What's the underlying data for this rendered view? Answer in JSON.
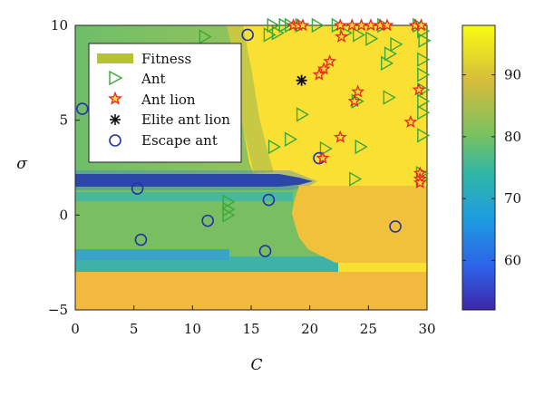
{
  "chart_data": {
    "type": "scatter",
    "title": "",
    "xlabel": "C",
    "ylabel": "σ",
    "xlim": [
      0,
      30
    ],
    "ylim": [
      -5,
      10
    ],
    "xticks": [
      0,
      5,
      10,
      15,
      20,
      25,
      30
    ],
    "yticks": [
      -5,
      0,
      5,
      10
    ],
    "colorbar": {
      "range": [
        52,
        98
      ],
      "ticks": [
        60,
        70,
        80,
        90
      ],
      "colormap": [
        "#3e26a8",
        "#2d62e8",
        "#1e9ce0",
        "#30b7a6",
        "#7bc15f",
        "#d4bb3c",
        "#f9fb14"
      ]
    },
    "background_regions": {
      "description_colors": {
        "dark_blue": "#2a2c8c",
        "blue": "#3a9ee0",
        "teal": "#38b5a0",
        "green": "#6ebd6a",
        "lightgreen": "#8ec35c",
        "orange": "#f0ba3c",
        "yellow": "#fce634"
      }
    },
    "legend": {
      "position": "top-left",
      "entries": [
        {
          "label": "Fitness",
          "marker": "patch",
          "color": "#b5c32c"
        },
        {
          "label": "Ant",
          "marker": "triangle",
          "color": "#3aa83a"
        },
        {
          "label": "Ant lion",
          "marker": "star",
          "color": "#e8261c"
        },
        {
          "label": "Elite ant lion",
          "marker": "asterisk",
          "color": "#111111"
        },
        {
          "label": "Escape ant",
          "marker": "circle",
          "color": "#2433a8"
        }
      ]
    },
    "series": [
      {
        "name": "Ant",
        "points": [
          [
            16.8,
            10
          ],
          [
            17.8,
            10
          ],
          [
            18.3,
            10
          ],
          [
            19.2,
            10
          ],
          [
            20.6,
            10
          ],
          [
            22.3,
            10
          ],
          [
            26.2,
            10
          ],
          [
            29.2,
            10
          ],
          [
            29.6,
            9.7
          ],
          [
            29.7,
            9.2
          ],
          [
            16.5,
            9.5
          ],
          [
            17.2,
            9.6
          ],
          [
            23.0,
            9.6
          ],
          [
            24.1,
            9.5
          ],
          [
            25.2,
            9.3
          ],
          [
            27.3,
            9.0
          ],
          [
            26.8,
            8.5
          ],
          [
            26.5,
            8.0
          ],
          [
            11.0,
            9.4
          ],
          [
            29.6,
            8.2
          ],
          [
            29.6,
            7.4
          ],
          [
            29.6,
            6.6
          ],
          [
            29.6,
            6.0
          ],
          [
            29.6,
            5.4
          ],
          [
            26.7,
            6.2
          ],
          [
            24.0,
            6.0
          ],
          [
            29.6,
            4.2
          ],
          [
            19.3,
            5.3
          ],
          [
            18.3,
            4.0
          ],
          [
            24.3,
            3.6
          ],
          [
            16.9,
            3.6
          ],
          [
            21.3,
            3.5
          ],
          [
            23.8,
            1.9
          ],
          [
            29.5,
            2.2
          ],
          [
            29.5,
            1.9
          ],
          [
            13.0,
            0.7
          ],
          [
            13.0,
            0.3
          ],
          [
            13.0,
            0.0
          ]
        ]
      },
      {
        "name": "Ant lion",
        "points": [
          [
            18.6,
            10
          ],
          [
            19.0,
            10
          ],
          [
            19.4,
            10
          ],
          [
            22.6,
            10
          ],
          [
            23.6,
            10
          ],
          [
            24.4,
            10
          ],
          [
            25.2,
            10
          ],
          [
            26.0,
            10
          ],
          [
            26.6,
            10
          ],
          [
            29.0,
            10
          ],
          [
            29.5,
            10
          ],
          [
            22.7,
            9.4
          ],
          [
            21.7,
            8.1
          ],
          [
            21.2,
            7.7
          ],
          [
            20.8,
            7.4
          ],
          [
            24.1,
            6.5
          ],
          [
            23.8,
            6.0
          ],
          [
            29.3,
            6.6
          ],
          [
            28.6,
            4.9
          ],
          [
            22.6,
            4.1
          ],
          [
            21.1,
            3.0
          ],
          [
            29.4,
            2.2
          ],
          [
            29.4,
            1.9
          ],
          [
            29.4,
            1.7
          ]
        ]
      },
      {
        "name": "Elite ant lion",
        "points": [
          [
            19.3,
            7.1
          ]
        ]
      },
      {
        "name": "Escape ant",
        "points": [
          [
            0.6,
            5.6
          ],
          [
            5.3,
            1.4
          ],
          [
            5.6,
            -1.3
          ],
          [
            11.3,
            -0.3
          ],
          [
            14.7,
            9.5
          ],
          [
            16.2,
            -1.9
          ],
          [
            16.5,
            0.8
          ],
          [
            20.8,
            3.0
          ],
          [
            27.3,
            -0.6
          ]
        ]
      }
    ]
  }
}
